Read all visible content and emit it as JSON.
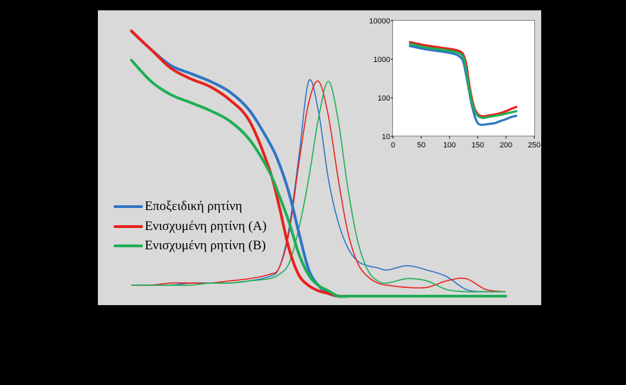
{
  "colors": {
    "background": "#000000",
    "plot_area": "#d9d9d9"
  },
  "chart_data": [
    {
      "type": "line",
      "title": "",
      "xlabel": "",
      "ylabel": "",
      "grid": false,
      "legend_placement": "lower-left",
      "x": [
        30,
        40,
        50,
        60,
        70,
        80,
        90,
        100,
        105,
        110,
        115,
        120,
        125,
        130,
        135,
        140,
        145,
        150,
        155,
        160,
        170,
        180,
        190,
        200,
        210,
        220
      ],
      "series": [
        {
          "name": "Εποξειδική ρητίνη",
          "color": "#2e75c4",
          "storage_modulus": [
            1.0,
            0.93,
            0.87,
            0.84,
            0.81,
            0.77,
            0.7,
            0.58,
            0.5,
            0.39,
            0.24,
            0.1,
            0.04,
            0.01,
            0.0,
            0.0,
            0.0,
            0.0,
            0.0,
            0.0,
            0.0,
            0.0,
            0.0,
            0.0,
            0.0,
            0.0
          ],
          "tan_delta": [
            0.06,
            0.06,
            0.06,
            0.07,
            0.07,
            0.07,
            0.08,
            0.1,
            0.14,
            0.32,
            0.65,
            1.0,
            0.86,
            0.55,
            0.35,
            0.23,
            0.17,
            0.15,
            0.14,
            0.13,
            0.15,
            0.13,
            0.1,
            0.04,
            0.03,
            0.03
          ]
        },
        {
          "name": "Ενισχυμένη ρητίνη (A)",
          "color": "#e8211c",
          "storage_modulus": [
            1.0,
            0.93,
            0.86,
            0.82,
            0.79,
            0.74,
            0.66,
            0.48,
            0.34,
            0.18,
            0.08,
            0.04,
            0.02,
            0.01,
            0.0,
            0.0,
            0.0,
            0.0,
            0.0,
            0.0,
            0.0,
            0.0,
            0.0,
            0.0,
            0.0,
            0.0
          ],
          "tan_delta": [
            0.06,
            0.06,
            0.07,
            0.07,
            0.07,
            0.08,
            0.09,
            0.11,
            0.14,
            0.3,
            0.62,
            0.9,
            1.0,
            0.84,
            0.55,
            0.3,
            0.16,
            0.1,
            0.07,
            0.06,
            0.05,
            0.05,
            0.08,
            0.09,
            0.04,
            0.03
          ]
        },
        {
          "name": "Ενισχυμένη ρητίνη (B)",
          "color": "#1fae55",
          "storage_modulus": [
            0.89,
            0.81,
            0.76,
            0.73,
            0.7,
            0.66,
            0.59,
            0.47,
            0.38,
            0.28,
            0.16,
            0.08,
            0.04,
            0.02,
            0.0,
            0.0,
            0.0,
            0.0,
            0.0,
            0.0,
            0.0,
            0.0,
            0.0,
            0.0,
            0.0,
            0.0
          ],
          "tan_delta": [
            0.06,
            0.06,
            0.06,
            0.06,
            0.07,
            0.07,
            0.08,
            0.09,
            0.11,
            0.16,
            0.32,
            0.55,
            0.83,
            1.0,
            0.82,
            0.5,
            0.26,
            0.13,
            0.08,
            0.07,
            0.09,
            0.08,
            0.04,
            0.03,
            0.03,
            0.03
          ]
        }
      ]
    },
    {
      "type": "line",
      "title": "",
      "xlabel": "",
      "ylabel": "",
      "yscale": "log",
      "grid": false,
      "legend_placement": "none",
      "xlim": [
        0,
        250
      ],
      "ylim": [
        10,
        10000
      ],
      "x_ticks": [
        "0",
        "50",
        "100",
        "150",
        "200",
        "250"
      ],
      "y_ticks": [
        "10",
        "100",
        "1000",
        "10000"
      ],
      "x": [
        30,
        50,
        70,
        90,
        110,
        120,
        125,
        130,
        135,
        140,
        145,
        150,
        155,
        160,
        170,
        180,
        190,
        200,
        210,
        218
      ],
      "series": [
        {
          "color": "#2e75c4",
          "values": [
            2200,
            1900,
            1700,
            1550,
            1350,
            1100,
            800,
            350,
            140,
            60,
            32,
            22,
            20,
            20,
            21,
            22,
            25,
            28,
            32,
            34
          ]
        },
        {
          "color": "#e8211c",
          "values": [
            2800,
            2400,
            2150,
            1950,
            1750,
            1550,
            1250,
            700,
            220,
            90,
            50,
            38,
            34,
            33,
            35,
            37,
            40,
            45,
            52,
            58
          ]
        },
        {
          "color": "#1fae55",
          "values": [
            2500,
            2150,
            1900,
            1750,
            1550,
            1350,
            1050,
            500,
            170,
            75,
            45,
            34,
            31,
            30,
            32,
            34,
            36,
            39,
            42,
            45
          ]
        }
      ]
    }
  ]
}
